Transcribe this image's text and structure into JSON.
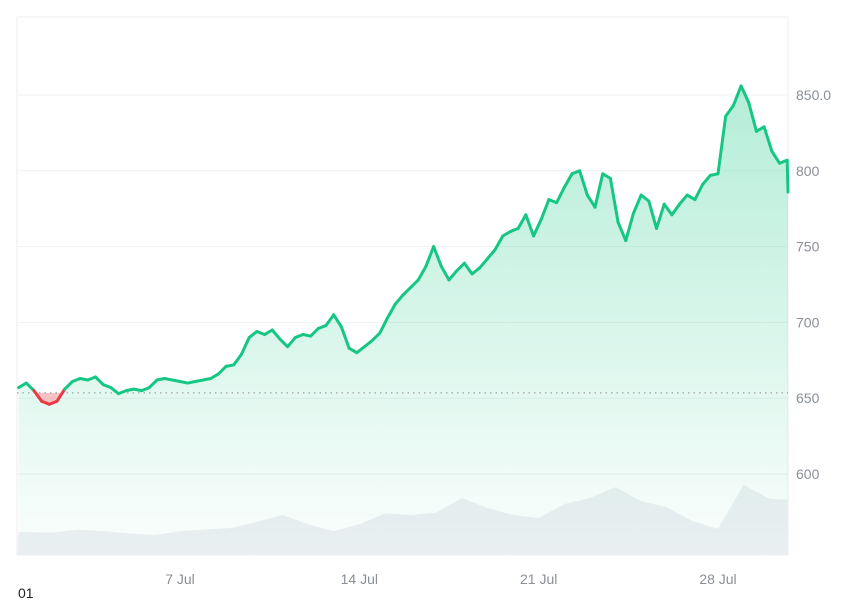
{
  "chart_data": {
    "type": "line",
    "title": "",
    "xlabel": "",
    "ylabel": "",
    "x_tick_labels": [
      "7 Jul",
      "14 Jul",
      "21 Jul",
      "28 Jul"
    ],
    "y_tick_labels": [
      "850.0",
      "800",
      "750",
      "700",
      "650",
      "600"
    ],
    "y_ticks": [
      850,
      800,
      750,
      700,
      650,
      600
    ],
    "ylim": [
      546,
      895
    ],
    "xlim_days": [
      0.7,
      31.0
    ],
    "grid": true,
    "baseline_value": 653.5,
    "baseline_style": "dotted",
    "colors": {
      "up": "#16c784",
      "down": "#ea3943",
      "up_fill": "#16c784",
      "down_fill": "#ea3943",
      "volume": "#eef0f3",
      "grid": "#eff2f5",
      "axis_text": "#8a8f98"
    },
    "series": [
      {
        "name": "Price",
        "x_days": [
          0.7,
          1.0,
          1.3,
          1.6,
          1.9,
          2.2,
          2.5,
          2.8,
          3.1,
          3.4,
          3.7,
          4.0,
          4.3,
          4.6,
          4.9,
          5.2,
          5.5,
          5.8,
          6.1,
          6.4,
          6.7,
          7.0,
          7.3,
          7.6,
          7.9,
          8.2,
          8.5,
          8.8,
          9.1,
          9.4,
          9.7,
          10.0,
          10.3,
          10.6,
          10.9,
          11.2,
          11.5,
          11.8,
          12.1,
          12.4,
          12.7,
          13.0,
          13.3,
          13.6,
          13.9,
          14.2,
          14.5,
          14.8,
          15.1,
          15.4,
          15.7,
          16.0,
          16.3,
          16.6,
          16.9,
          17.2,
          17.5,
          17.8,
          18.1,
          18.4,
          18.7,
          19.0,
          19.3,
          19.6,
          19.9,
          20.2,
          20.5,
          20.8,
          21.1,
          21.4,
          21.7,
          22.0,
          22.3,
          22.6,
          22.9,
          23.2,
          23.5,
          23.8,
          24.1,
          24.4,
          24.7,
          25.0,
          25.3,
          25.6,
          25.9,
          26.2,
          26.5,
          26.8,
          27.1,
          27.4,
          27.7,
          28.0,
          28.3,
          28.6,
          28.9,
          29.2,
          29.5,
          29.8,
          30.1,
          30.4,
          30.7,
          31.0
        ],
        "values": [
          657,
          660,
          655,
          648,
          646,
          648,
          656,
          661,
          663,
          662,
          664,
          659,
          657,
          653,
          655,
          656,
          655,
          657,
          662,
          663,
          662,
          661,
          660,
          661,
          662,
          663,
          666,
          671,
          672,
          679,
          690,
          694,
          692,
          695,
          689,
          684,
          690,
          692,
          691,
          696,
          698,
          705,
          697,
          683,
          680,
          684,
          688,
          693,
          703,
          712,
          718,
          723,
          728,
          737,
          750,
          737,
          728,
          734,
          739,
          732,
          736,
          742,
          748,
          757,
          760,
          762,
          771,
          757,
          768,
          781,
          779,
          789,
          798,
          800,
          784,
          776,
          798,
          795,
          766,
          754,
          772,
          784,
          780,
          762,
          778,
          771,
          778,
          784,
          781,
          791,
          797,
          798,
          836,
          843,
          856,
          845,
          826,
          829,
          813,
          805,
          807,
          786
        ]
      },
      {
        "name": "Volume",
        "x_days": [
          0.7,
          2,
          3,
          4,
          5,
          6,
          7,
          8,
          9,
          10,
          11,
          12,
          13,
          14,
          15,
          16,
          17,
          18,
          19,
          20,
          21,
          22,
          23,
          24,
          25,
          26,
          27,
          28,
          29,
          30,
          31
        ],
        "relative_heights": [
          0.3,
          0.29,
          0.33,
          0.31,
          0.28,
          0.26,
          0.31,
          0.33,
          0.35,
          0.43,
          0.52,
          0.4,
          0.31,
          0.4,
          0.54,
          0.52,
          0.55,
          0.74,
          0.61,
          0.52,
          0.48,
          0.66,
          0.74,
          0.88,
          0.7,
          0.62,
          0.44,
          0.34,
          0.91,
          0.73,
          0.72
        ]
      }
    ]
  },
  "footer": {
    "clipped_label": "01"
  }
}
